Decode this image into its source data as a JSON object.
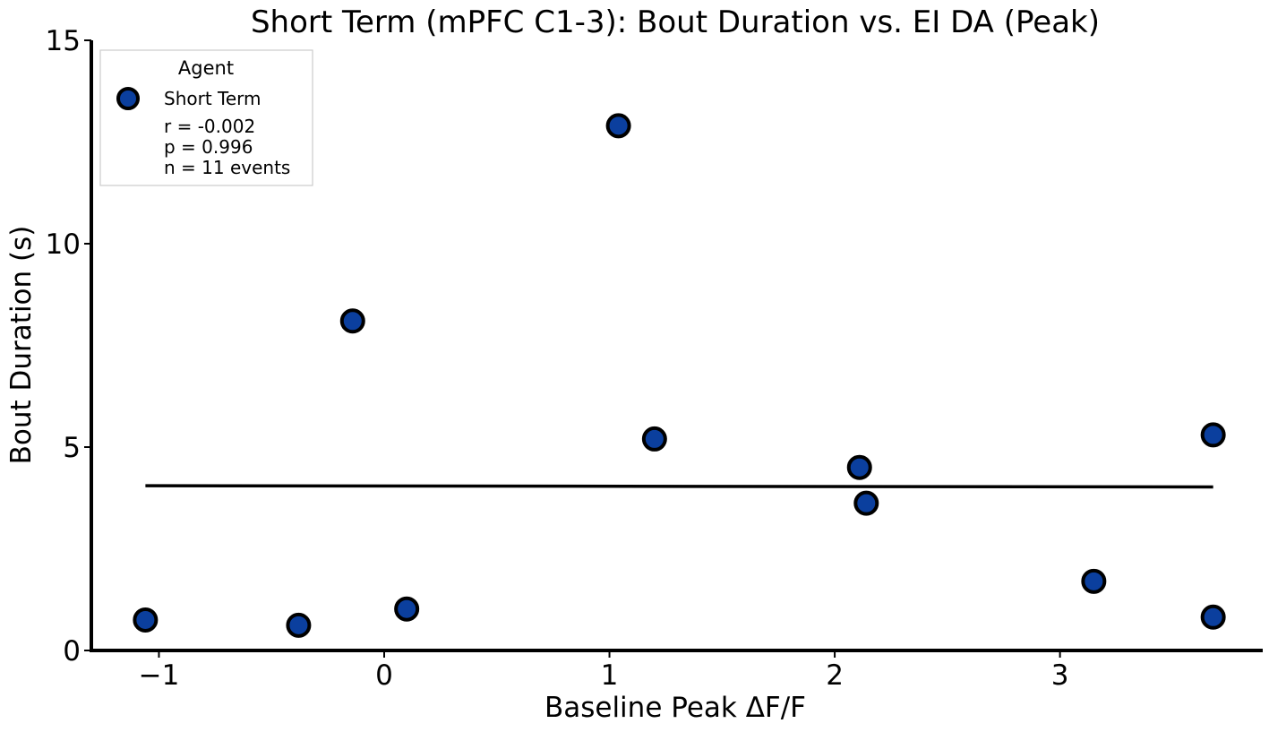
{
  "chart_data": {
    "type": "scatter",
    "title": "Short Term (mPFC C1-3): Bout Duration vs. EI DA (Peak)",
    "xlabel": "Baseline Peak ΔF/F",
    "ylabel": "Bout Duration (s)",
    "xlim": [
      -1.3,
      3.9
    ],
    "ylim": [
      0,
      15
    ],
    "xticks": [
      -1,
      0,
      1,
      2,
      3
    ],
    "xtick_labels": [
      "−1",
      "0",
      "1",
      "2",
      "3"
    ],
    "yticks": [
      0,
      5,
      10,
      15
    ],
    "ytick_labels": [
      "0",
      "5",
      "10",
      "15"
    ],
    "grid": false,
    "legend": {
      "title": "Agent",
      "placement": "top-left",
      "entries": [
        "Short Term"
      ],
      "stats": [
        "r = -0.002",
        "p = 0.996",
        "n = 11 events"
      ]
    },
    "series": [
      {
        "name": "Short Term",
        "color": "#0b3f9e",
        "edgecolor": "#000000",
        "x": [
          -1.06,
          -0.38,
          -0.14,
          0.1,
          1.04,
          1.2,
          2.11,
          2.14,
          3.15,
          3.68,
          3.68
        ],
        "y": [
          0.75,
          0.62,
          8.1,
          1.02,
          12.9,
          5.2,
          4.5,
          3.62,
          1.7,
          5.3,
          0.82
        ]
      }
    ],
    "fit_line": {
      "color": "#000000",
      "x": [
        -1.06,
        3.68
      ],
      "y": [
        4.05,
        4.02
      ]
    }
  }
}
